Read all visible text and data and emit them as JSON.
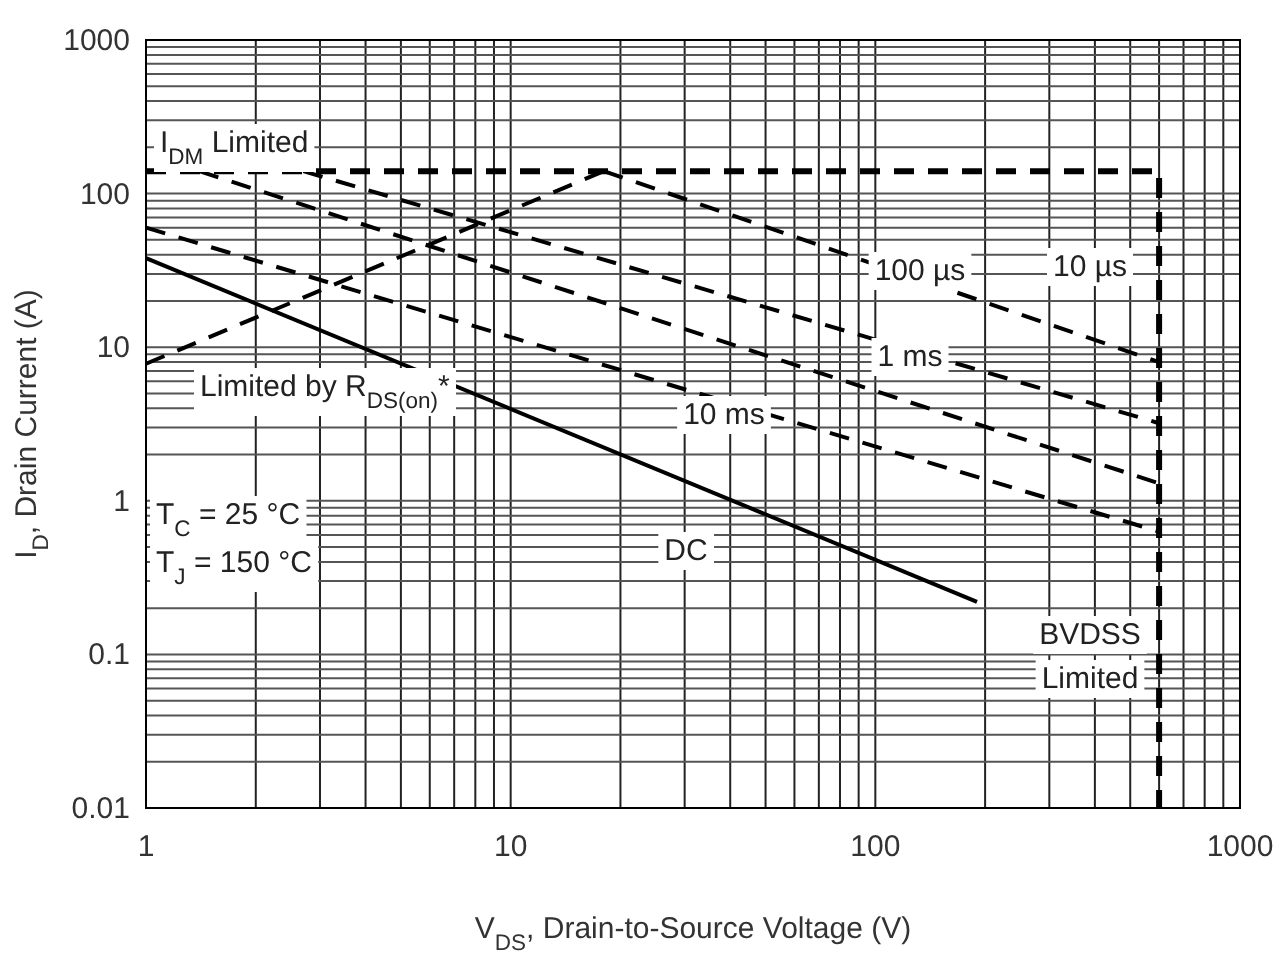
{
  "chart_data": {
    "type": "line",
    "log": "xy",
    "xlabel": "V$_{DS}$, Drain-to-Source Voltage (V)",
    "ylabel": "I$_{D}$, Drain Current (A)",
    "xlim": [
      1,
      1000
    ],
    "ylim": [
      0.01,
      1000
    ],
    "xticks": [
      1,
      10,
      100,
      1000
    ],
    "yticks": [
      0.01,
      0.1,
      1,
      10,
      100,
      1000
    ],
    "grid": true,
    "series": [
      {
        "color": "#000000",
        "line_style": "dashed",
        "x": [
          1,
          600,
          600
        ],
        "values": [
          140,
          140,
          0.01
        ]
      },
      {
        "color": "#000000",
        "line_style": "dashed",
        "x": [
          1,
          18
        ],
        "values": [
          7.8,
          140
        ]
      },
      {
        "color": "#000000",
        "line_style": "dashed",
        "x": [
          18,
          600
        ],
        "values": [
          140,
          8
        ]
      },
      {
        "color": "#000000",
        "line_style": "dashed",
        "x": [
          2.7,
          600
        ],
        "values": [
          140,
          3.2
        ]
      },
      {
        "color": "#000000",
        "line_style": "dashed",
        "x": [
          1.4,
          600
        ],
        "values": [
          140,
          1.3
        ]
      },
      {
        "color": "#000000",
        "line_style": "dashed",
        "x": [
          1,
          600
        ],
        "values": [
          60,
          0.63
        ]
      },
      {
        "color": "#000000",
        "line_style": "solid",
        "x": [
          1,
          190
        ],
        "values": [
          38,
          0.22
        ]
      }
    ],
    "annotations": [
      "I$_{DM}$ Limited",
      "Limited by R$_{DS(on)}$*",
      "100 µs",
      "10 µs",
      "1 ms",
      "10 ms",
      "DC",
      "BVDSS\nLimited",
      "T$_{C}$ = 25 °C",
      "T$_{J}$ = 150 °C"
    ]
  }
}
